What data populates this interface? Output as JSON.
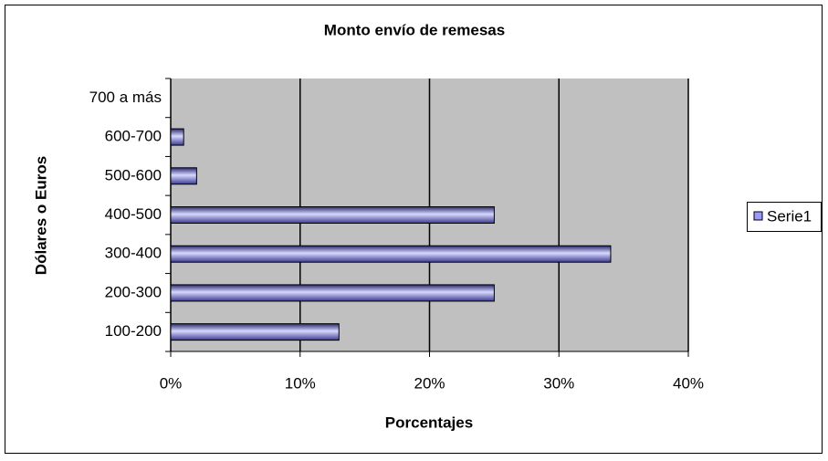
{
  "chart_data": {
    "type": "bar",
    "orientation": "horizontal",
    "title": "Monto envío de remesas",
    "x_label": "Porcentajes",
    "y_label": "Dólares o Euros",
    "categories": [
      "100-200",
      "200-300",
      "300-400",
      "400-500",
      "500-600",
      "600-700",
      "700 a más"
    ],
    "series": [
      {
        "name": "Serie1",
        "color": "#9999ff",
        "values": [
          13,
          25,
          34,
          25,
          2,
          1,
          0
        ]
      }
    ],
    "xlim": [
      0,
      40
    ],
    "xticks": [
      {
        "value": 0,
        "label": "0%"
      },
      {
        "value": 10,
        "label": "10%"
      },
      {
        "value": 20,
        "label": "20%"
      },
      {
        "value": 30,
        "label": "30%"
      },
      {
        "value": 40,
        "label": "40%"
      }
    ],
    "grid": true,
    "legend": "right"
  }
}
